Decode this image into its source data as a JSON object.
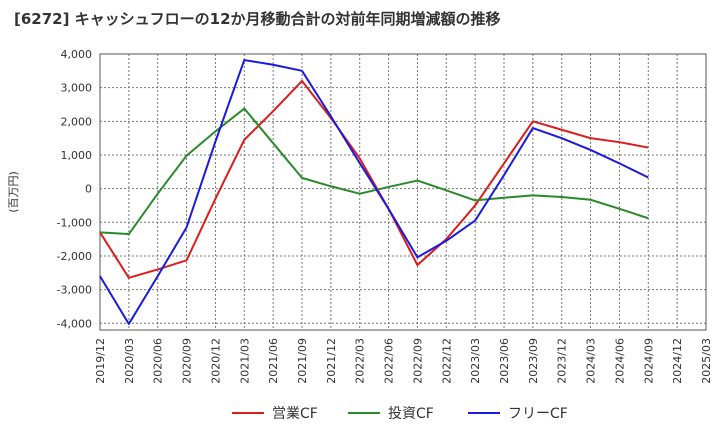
{
  "chart_data": {
    "type": "line",
    "title": "[6272]  キャッシュフローの12か月移動合計の対前年同期増減額の推移",
    "ylabel": "(百万円)",
    "xlabel": "",
    "ylim": [
      -4200,
      4000
    ],
    "yticks": [
      4000,
      3000,
      2000,
      1000,
      0,
      -1000,
      -2000,
      -3000,
      -4000
    ],
    "ytick_labels": [
      "4,000",
      "3,000",
      "2,000",
      "1,000",
      "0",
      "-1,000",
      "-2,000",
      "-3,000",
      "-4,000"
    ],
    "categories": [
      "2019/12",
      "2020/03",
      "2020/06",
      "2020/09",
      "2020/12",
      "2021/03",
      "2021/06",
      "2021/09",
      "2021/12",
      "2022/03",
      "2022/06",
      "2022/09",
      "2022/12",
      "2023/03",
      "2023/06",
      "2023/09",
      "2023/12",
      "2024/03",
      "2024/06",
      "2024/09",
      "2024/12",
      "2025/03"
    ],
    "grid": true,
    "legend_position": "bottom",
    "series": [
      {
        "name": "営業CF",
        "color": "#dd1c1c",
        "values": [
          -1300,
          -2650,
          -2400,
          -2130,
          -300,
          1450,
          2300,
          3200,
          2100,
          900,
          -600,
          -2270,
          -1500,
          -500,
          750,
          2000,
          1750,
          1500,
          1380,
          1220,
          null,
          null
        ]
      },
      {
        "name": "投資CF",
        "color": "#2a8a2a",
        "values": [
          -1300,
          -1350,
          -150,
          980,
          1700,
          2380,
          1350,
          320,
          70,
          -150,
          50,
          240,
          -50,
          -350,
          -270,
          -200,
          -250,
          -330,
          -600,
          -880,
          null,
          null
        ]
      },
      {
        "name": "フリーCF",
        "color": "#1a1ae0",
        "values": [
          -2600,
          -4020,
          -2600,
          -1150,
          1400,
          3820,
          3680,
          3500,
          2150,
          760,
          -600,
          -2040,
          -1550,
          -950,
          400,
          1800,
          1500,
          1150,
          750,
          330,
          null,
          null
        ]
      }
    ]
  }
}
